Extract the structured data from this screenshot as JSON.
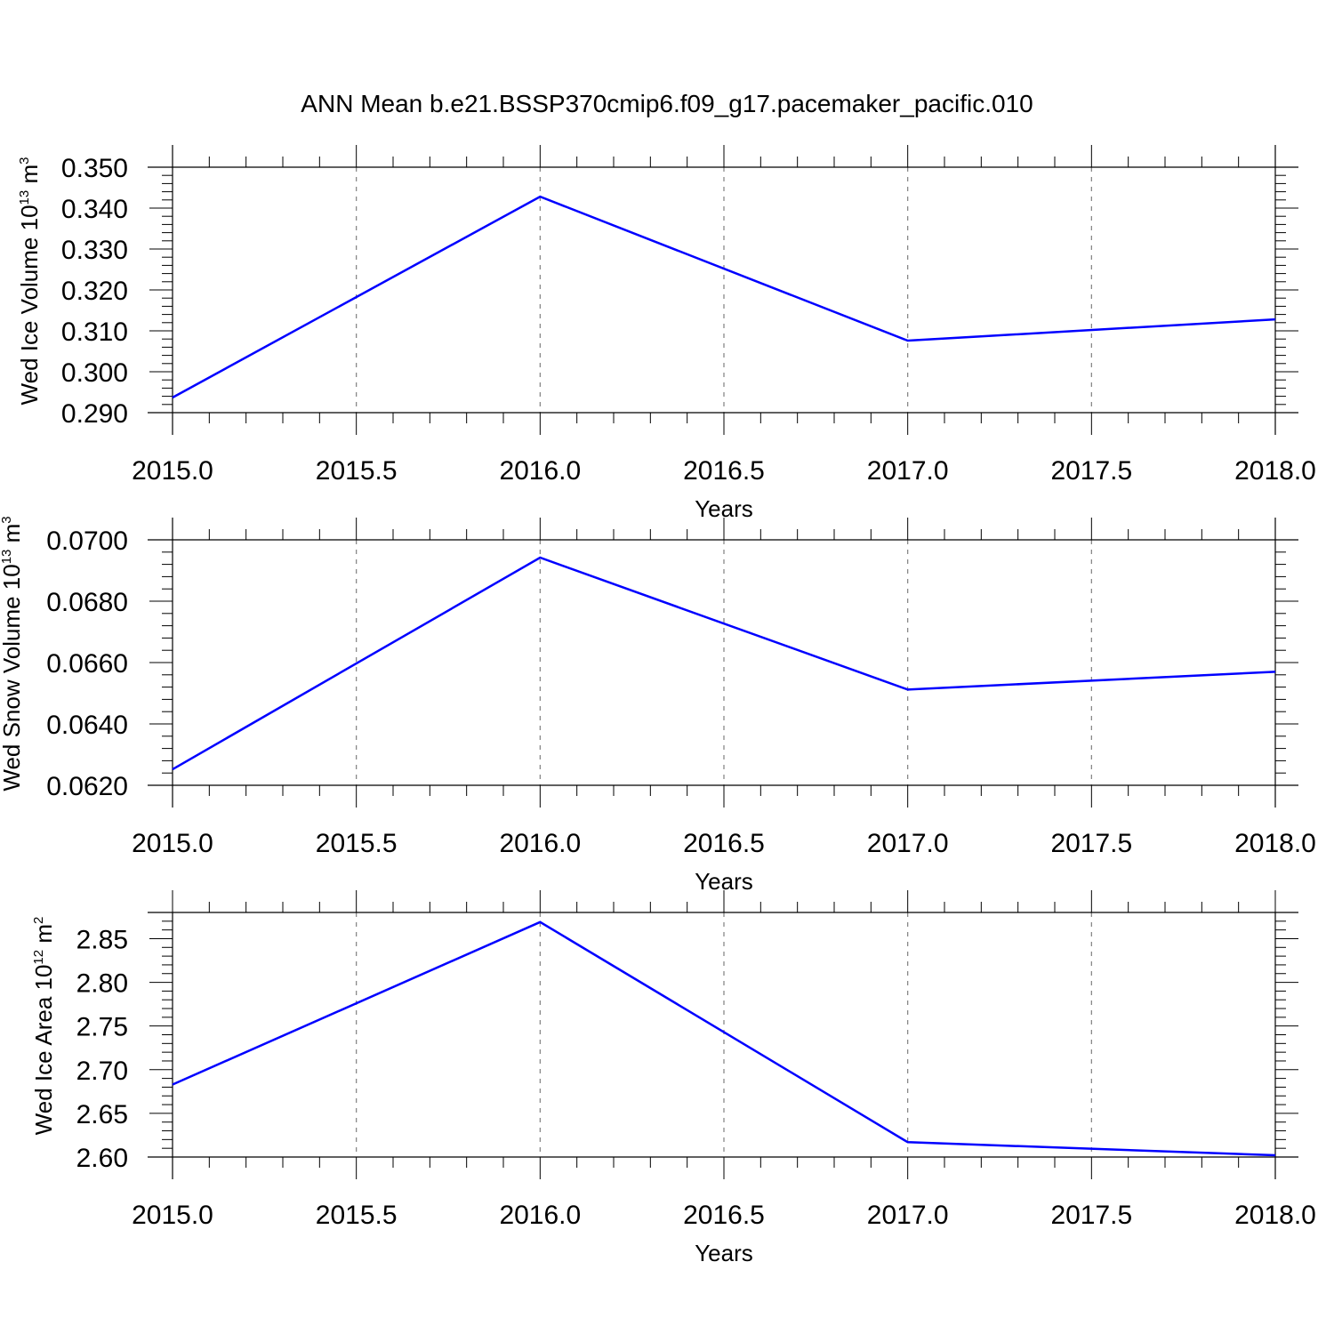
{
  "figure": {
    "title": "ANN Mean b.e21.BSSP370cmip6.f09_g17.pacemaker_pacific.010"
  },
  "colors": {
    "series": "#0000ff",
    "axes": "#000000",
    "grid": "#808080"
  },
  "chart_data": [
    {
      "type": "line",
      "xlabel": "Years",
      "ylabel": {
        "prefix": "Wed Ice Volume 10",
        "exp": "13",
        "unit": " m",
        "unit_exp": "3"
      },
      "x": [
        2015.0,
        2016.0,
        2017.0,
        2018.0
      ],
      "series": [
        {
          "values": [
            0.2937,
            0.3428,
            0.3076,
            0.3128
          ]
        }
      ],
      "xlim": [
        2015.0,
        2018.0
      ],
      "ylim": [
        0.29,
        0.35
      ],
      "xticks": [
        "2015.0",
        "2015.5",
        "2016.0",
        "2016.5",
        "2017.0",
        "2017.5",
        "2018.0"
      ],
      "yticks": [
        "0.290",
        "0.300",
        "0.310",
        "0.320",
        "0.330",
        "0.340",
        "0.350"
      ],
      "grid": "x-major-dashed"
    },
    {
      "type": "line",
      "xlabel": "Years",
      "ylabel": {
        "prefix": "Wed Snow Volume 10",
        "exp": "13",
        "unit": " m",
        "unit_exp": "3"
      },
      "x": [
        2015.0,
        2016.0,
        2017.0,
        2018.0
      ],
      "series": [
        {
          "values": [
            0.06252,
            0.06942,
            0.06512,
            0.0657
          ]
        }
      ],
      "xlim": [
        2015.0,
        2018.0
      ],
      "ylim": [
        0.062,
        0.07
      ],
      "xticks": [
        "2015.0",
        "2015.5",
        "2016.0",
        "2016.5",
        "2017.0",
        "2017.5",
        "2018.0"
      ],
      "yticks": [
        "0.0620",
        "0.0640",
        "0.0660",
        "0.0680",
        "0.0700"
      ],
      "grid": "x-major-dashed"
    },
    {
      "type": "line",
      "xlabel": "Years",
      "ylabel": {
        "prefix": "Wed Ice Area 10",
        "exp": "12",
        "unit": " m",
        "unit_exp": "2"
      },
      "x": [
        2015.0,
        2016.0,
        2017.0,
        2018.0
      ],
      "series": [
        {
          "values": [
            2.683,
            2.869,
            2.617,
            2.602
          ]
        }
      ],
      "xlim": [
        2015.0,
        2018.0
      ],
      "ylim": [
        2.6,
        2.88
      ],
      "xticks": [
        "2015.0",
        "2015.5",
        "2016.0",
        "2016.5",
        "2017.0",
        "2017.5",
        "2018.0"
      ],
      "yticks": [
        "2.60",
        "2.65",
        "2.70",
        "2.75",
        "2.80",
        "2.85"
      ],
      "grid": "x-major-dashed"
    }
  ]
}
